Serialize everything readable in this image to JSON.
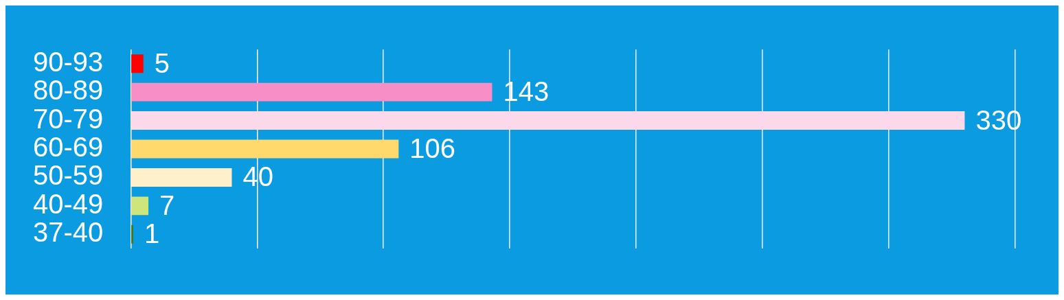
{
  "chart_data": {
    "type": "bar",
    "orientation": "horizontal",
    "categories": [
      "90-93",
      "80-89",
      "70-79",
      "60-69",
      "50-59",
      "40-49",
      "37-40"
    ],
    "values": [
      5,
      143,
      330,
      106,
      40,
      7,
      1
    ],
    "colors": [
      "#ff0000",
      "#f78fc6",
      "#fbd9ea",
      "#ffd96b",
      "#fff0cc",
      "#cde57b",
      "#3a7d2a"
    ],
    "xlim": [
      0,
      350
    ],
    "xticks": [
      {
        "value": 0,
        "label": null
      },
      {
        "value": 50,
        "label": null
      },
      {
        "value": 100,
        "label": null
      },
      {
        "value": 150,
        "label": null
      },
      {
        "value": 200,
        "label": null
      },
      {
        "value": 250,
        "label": null
      },
      {
        "value": 300,
        "label": null
      },
      {
        "value": 350,
        "label": null
      }
    ],
    "tick_labels": "y",
    "grid": "x",
    "data_labels": true,
    "legend": false
  }
}
